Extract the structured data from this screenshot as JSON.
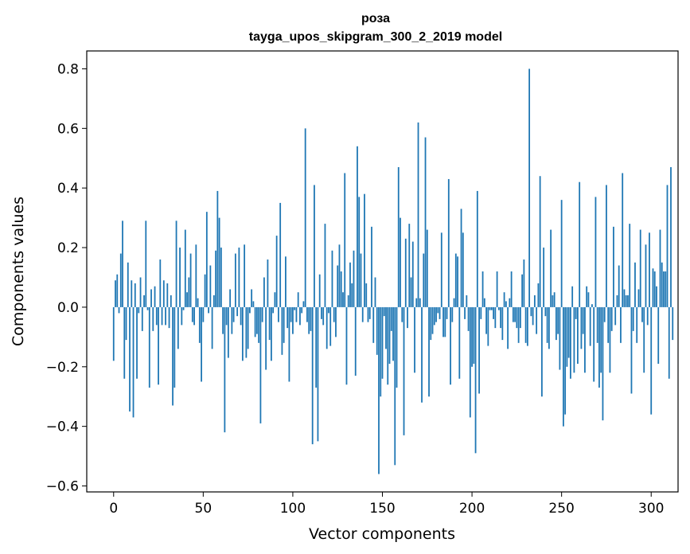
{
  "chart_data": {
    "type": "bar",
    "title": "роза",
    "subtitle": "tayga_upos_skipgram_300_2_2019 model",
    "xlabel": "Vector components",
    "ylabel": "Components values",
    "xlim": [
      -15,
      315
    ],
    "ylim": [
      -0.62,
      0.86
    ],
    "xticks": [
      0,
      50,
      100,
      150,
      200,
      250,
      300
    ],
    "xtick_labels": [
      "0",
      "50",
      "100",
      "150",
      "200",
      "250",
      "300"
    ],
    "yticks": [
      -0.6,
      -0.4,
      -0.2,
      0.0,
      0.2,
      0.4,
      0.6,
      0.8
    ],
    "ytick_labels": [
      "−0.6",
      "−0.4",
      "−0.2",
      "0.0",
      "0.2",
      "0.4",
      "0.6",
      "0.8"
    ],
    "grid": false,
    "bar_color": "#1f77b4",
    "x_start": 0,
    "values": [
      -0.18,
      0.09,
      0.11,
      -0.02,
      0.18,
      0.29,
      -0.24,
      -0.11,
      0.15,
      -0.35,
      0.09,
      -0.37,
      0.08,
      -0.24,
      -0.02,
      0.1,
      -0.08,
      0.04,
      0.29,
      -0.01,
      -0.27,
      0.06,
      -0.08,
      0.07,
      -0.06,
      -0.26,
      0.16,
      -0.06,
      0.09,
      -0.06,
      0.08,
      -0.07,
      0.04,
      -0.33,
      -0.27,
      0.29,
      -0.14,
      0.2,
      -0.06,
      -0.01,
      0.26,
      0.05,
      0.1,
      0.18,
      -0.05,
      -0.06,
      0.21,
      0.03,
      -0.12,
      -0.25,
      -0.05,
      0.11,
      0.32,
      -0.02,
      0.14,
      -0.14,
      0.04,
      0.19,
      0.39,
      0.3,
      0.2,
      -0.09,
      -0.42,
      -0.06,
      -0.17,
      0.06,
      -0.09,
      -0.05,
      0.18,
      -0.03,
      0.2,
      -0.06,
      -0.18,
      0.21,
      -0.17,
      -0.14,
      -0.02,
      0.06,
      0.02,
      -0.1,
      -0.09,
      -0.12,
      -0.39,
      -0.05,
      0.1,
      -0.21,
      0.16,
      -0.11,
      -0.18,
      -0.02,
      0.05,
      0.24,
      -0.05,
      0.35,
      -0.16,
      -0.12,
      0.17,
      -0.07,
      -0.25,
      -0.05,
      -0.09,
      -0.01,
      -0.05,
      0.05,
      -0.06,
      -0.02,
      0.02,
      0.6,
      -0.05,
      -0.09,
      -0.08,
      -0.46,
      0.41,
      -0.27,
      -0.45,
      0.11,
      -0.04,
      -0.06,
      0.28,
      -0.14,
      -0.02,
      -0.13,
      0.19,
      -0.05,
      -0.1,
      0.14,
      0.21,
      0.12,
      0.05,
      0.45,
      -0.26,
      0.04,
      0.15,
      0.08,
      0.19,
      -0.23,
      0.54,
      0.37,
      0.18,
      -0.05,
      0.38,
      0.08,
      -0.05,
      -0.04,
      0.27,
      -0.12,
      0.1,
      -0.16,
      -0.56,
      -0.3,
      -0.24,
      -0.03,
      -0.14,
      -0.26,
      -0.19,
      -0.08,
      -0.18,
      -0.53,
      -0.27,
      0.47,
      0.3,
      -0.05,
      -0.43,
      0.23,
      -0.07,
      0.28,
      0.1,
      0.22,
      -0.22,
      0.03,
      0.62,
      0.03,
      -0.32,
      0.18,
      0.57,
      0.26,
      -0.3,
      -0.11,
      -0.09,
      -0.06,
      -0.05,
      -0.02,
      -0.04,
      0.25,
      -0.1,
      -0.1,
      -0.04,
      0.43,
      -0.26,
      -0.05,
      0.03,
      0.18,
      0.17,
      -0.24,
      0.33,
      0.25,
      -0.04,
      0.04,
      -0.08,
      -0.37,
      -0.2,
      -0.19,
      -0.49,
      0.39,
      -0.29,
      -0.04,
      0.12,
      0.03,
      -0.09,
      -0.13,
      -0.01,
      -0.01,
      -0.04,
      -0.07,
      0.12,
      -0.01,
      -0.07,
      -0.11,
      0.05,
      0.02,
      -0.14,
      0.03,
      0.12,
      -0.05,
      -0.05,
      -0.07,
      -0.12,
      -0.07,
      0.11,
      0.16,
      -0.12,
      -0.13,
      0.8,
      -0.03,
      -0.06,
      0.04,
      -0.09,
      0.08,
      0.44,
      -0.3,
      0.2,
      -0.03,
      -0.12,
      -0.14,
      0.26,
      0.04,
      0.05,
      -0.11,
      -0.09,
      -0.21,
      0.36,
      -0.4,
      -0.36,
      -0.2,
      -0.17,
      -0.24,
      0.07,
      -0.22,
      -0.04,
      -0.19,
      0.42,
      -0.14,
      -0.09,
      -0.22,
      0.07,
      0.05,
      -0.13,
      0.01,
      -0.25,
      0.37,
      -0.12,
      -0.27,
      -0.22,
      -0.38,
      -0.05,
      0.41,
      -0.12,
      -0.22,
      -0.08,
      0.27,
      -0.06,
      0.04,
      0.14,
      -0.12,
      0.45,
      0.06,
      0.04,
      0.04,
      0.28,
      -0.29,
      -0.08,
      0.15,
      -0.12,
      0.06,
      0.26,
      -0.05,
      -0.22,
      0.21,
      -0.06,
      0.25,
      -0.36,
      0.13,
      0.12,
      0.07,
      -0.19,
      0.26,
      0.15,
      0.12,
      0.12,
      0.41,
      -0.24,
      0.47,
      -0.11
    ]
  }
}
